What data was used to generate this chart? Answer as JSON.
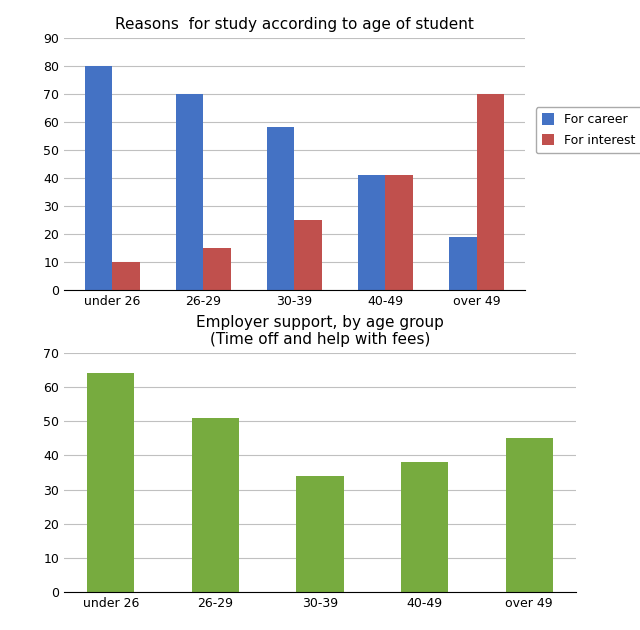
{
  "chart1": {
    "title": "Reasons  for study according to age of student",
    "categories": [
      "under 26",
      "26-29",
      "30-39",
      "40-49",
      "over 49"
    ],
    "career_values": [
      80,
      70,
      58,
      41,
      19
    ],
    "interest_values": [
      10,
      15,
      25,
      41,
      70
    ],
    "career_color": "#4472C4",
    "interest_color": "#C0504D",
    "legend_labels": [
      "For career",
      "For interest"
    ],
    "ylim": [
      0,
      90
    ],
    "yticks": [
      0,
      10,
      20,
      30,
      40,
      50,
      60,
      70,
      80,
      90
    ]
  },
  "chart2": {
    "title": "Employer support, by age group\n(Time off and help with fees)",
    "categories": [
      "under 26",
      "26-29",
      "30-39",
      "40-49",
      "over 49"
    ],
    "values": [
      64,
      51,
      34,
      38,
      45
    ],
    "bar_color": "#77AB3F",
    "ylim": [
      0,
      70
    ],
    "yticks": [
      0,
      10,
      20,
      30,
      40,
      50,
      60,
      70
    ]
  },
  "bg_color": "#FFFFFF",
  "grid_color": "#C0C0C0",
  "title_fontsize": 11,
  "tick_fontsize": 9
}
